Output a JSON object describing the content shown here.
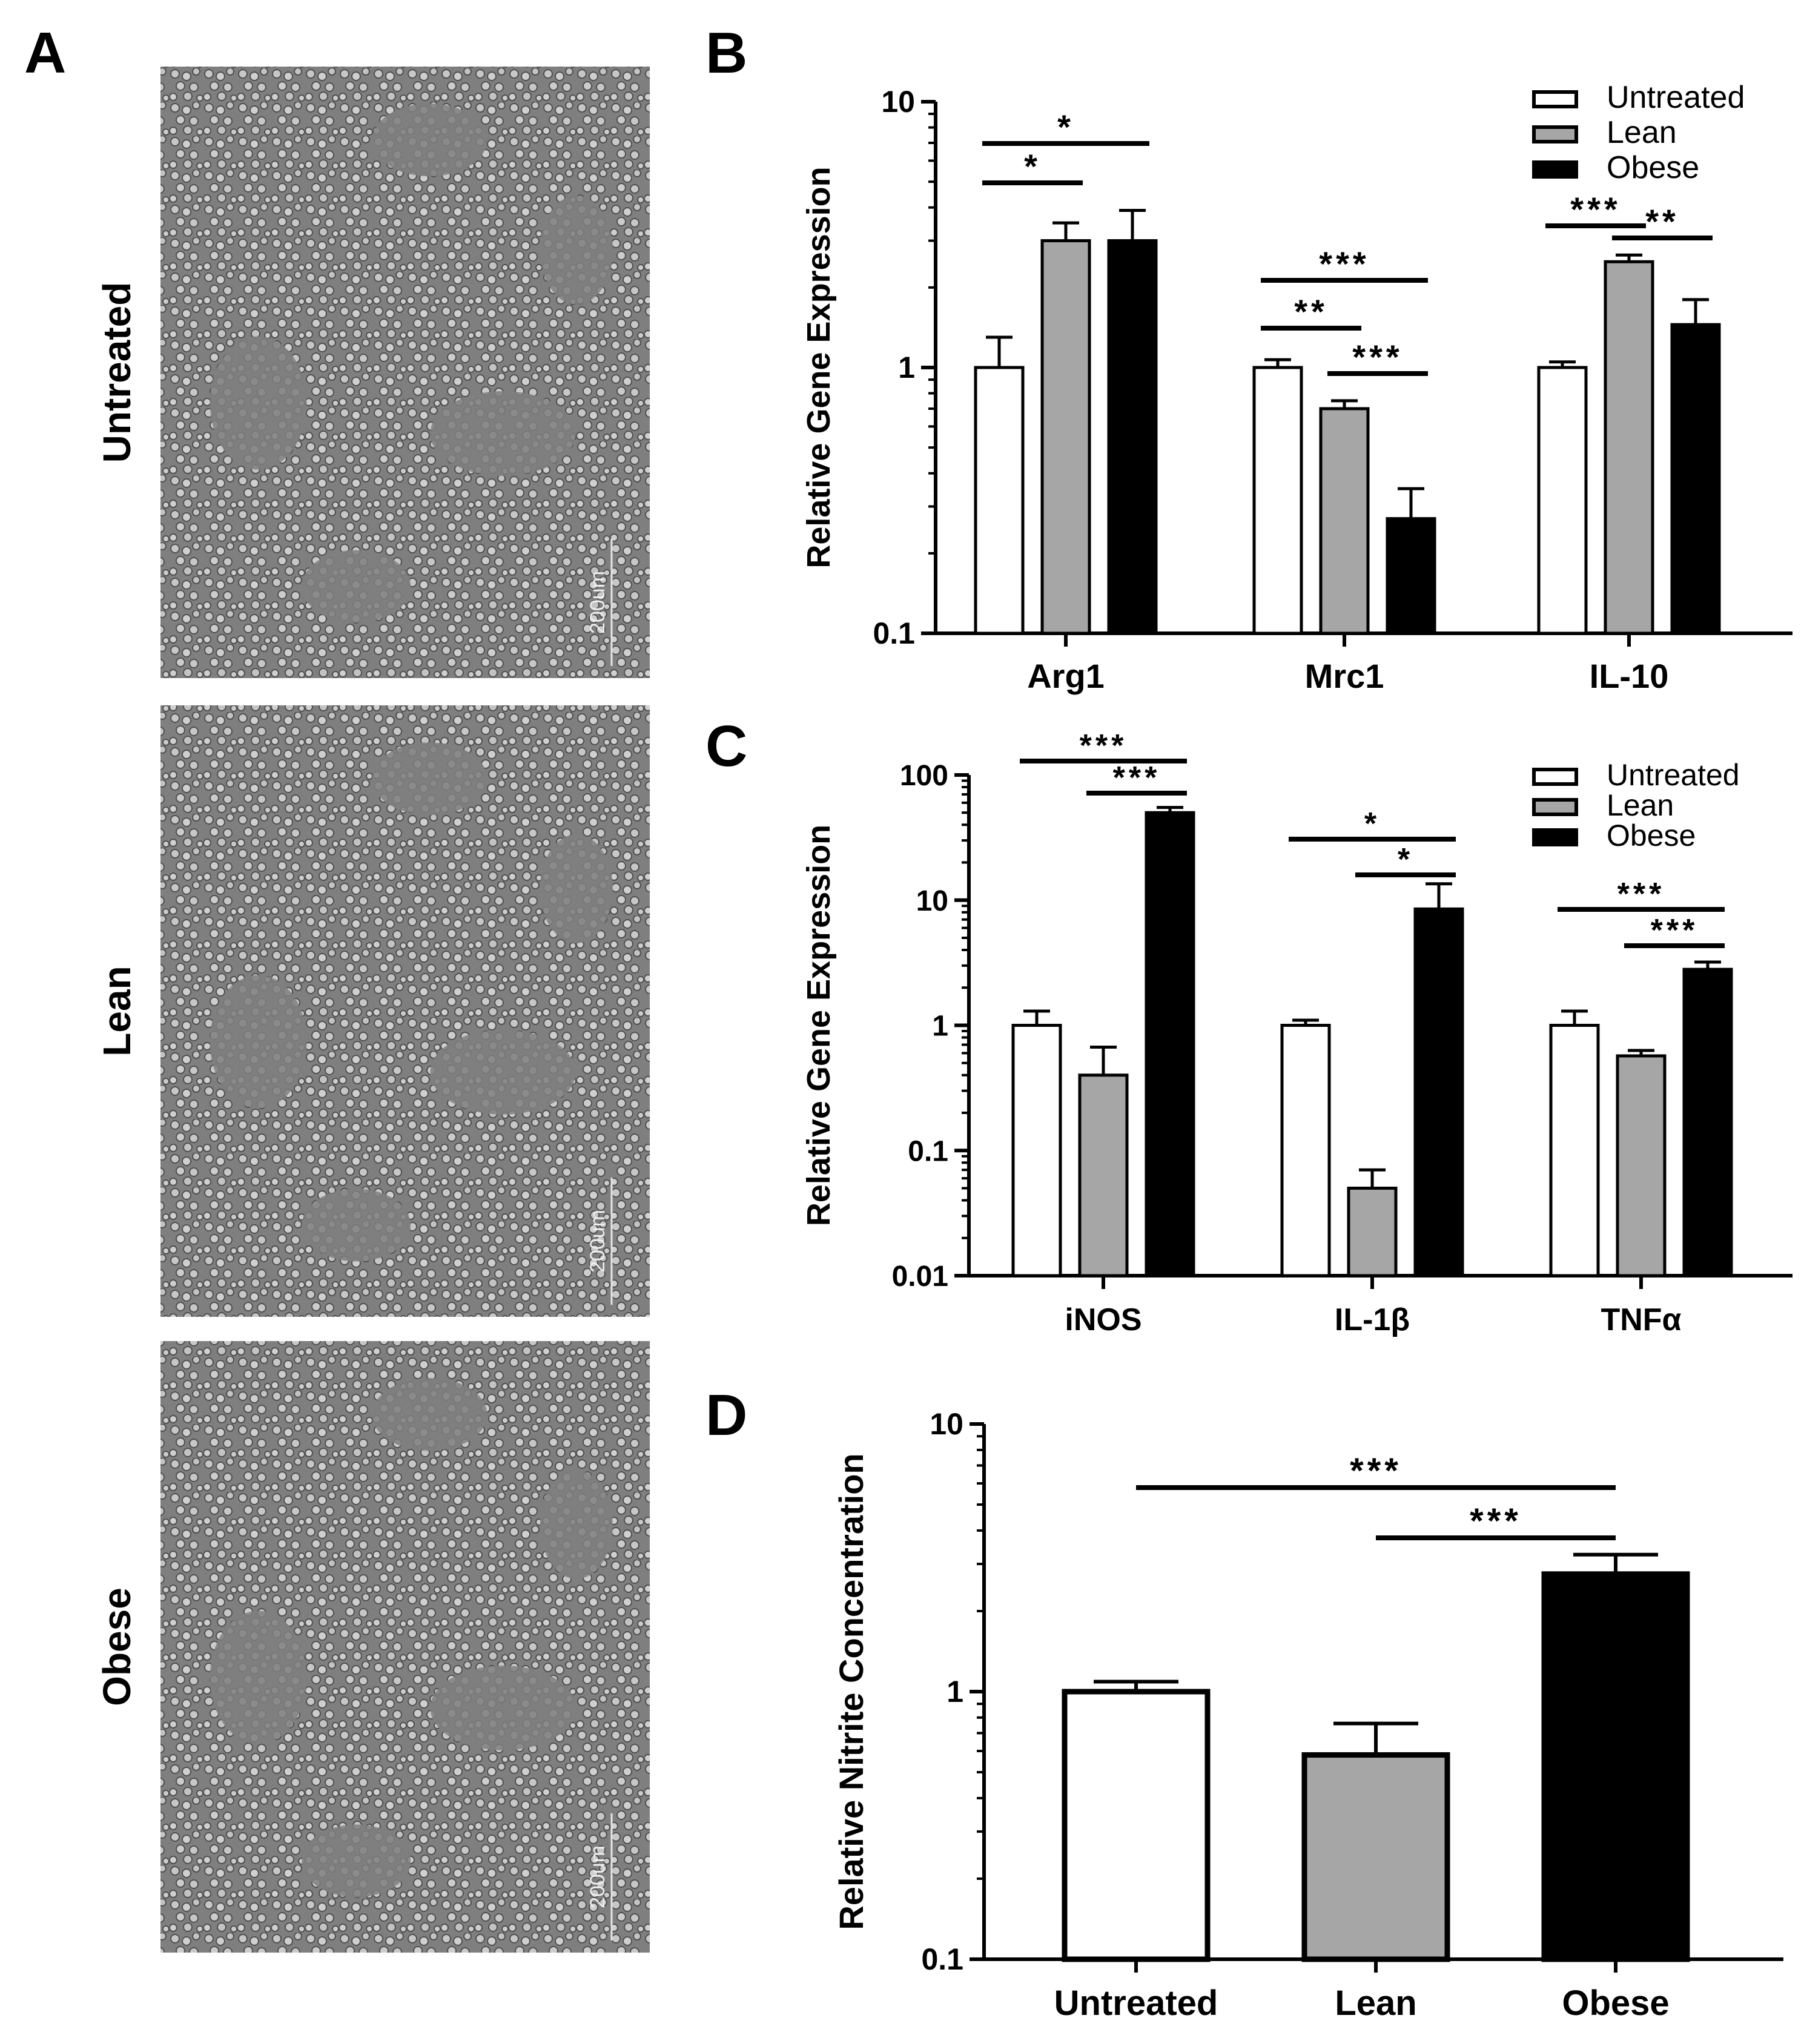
{
  "panel_labels": {
    "a": "A",
    "b": "B",
    "c": "C",
    "d": "D"
  },
  "micrographs": [
    {
      "row_label": "Untreated",
      "scale_bar": "200um"
    },
    {
      "row_label": "Lean",
      "scale_bar": "200um"
    },
    {
      "row_label": "Obese",
      "scale_bar": "200um"
    }
  ],
  "colors": {
    "untreated": "#ffffff",
    "lean": "#a6a6a6",
    "obese": "#000000",
    "bar_border": "#000000",
    "micrograph_background": "#7f7f7f",
    "micrograph_cells": "#d2d2d2"
  },
  "chart_data": [
    {
      "panel": "B",
      "type": "bar",
      "ylabel": "Relative Gene Expression",
      "yscale": "log",
      "ylim": [
        0.1,
        10
      ],
      "yticks": [
        "0.1",
        "1",
        "10"
      ],
      "categories": [
        "Arg1",
        "Mrc1",
        "IL-10"
      ],
      "legend": {
        "placement": "top-right",
        "entries": [
          "Untreated",
          "Lean",
          "Obese"
        ]
      },
      "series": [
        {
          "name": "Untreated",
          "values": [
            1.0,
            1.0,
            1.0
          ],
          "errors": [
            0.3,
            0.07,
            0.05
          ]
        },
        {
          "name": "Lean",
          "values": [
            3.0,
            0.7,
            2.5
          ],
          "errors": [
            0.5,
            0.05,
            0.15
          ]
        },
        {
          "name": "Obese",
          "values": [
            3.0,
            0.27,
            1.45
          ],
          "errors": [
            0.9,
            0.08,
            0.35
          ]
        }
      ],
      "significance": [
        {
          "category": "Arg1",
          "from": "Untreated",
          "to": "Lean",
          "label": "*"
        },
        {
          "category": "Arg1",
          "from": "Untreated",
          "to": "Obese",
          "label": "*"
        },
        {
          "category": "Mrc1",
          "from": "Untreated",
          "to": "Lean",
          "label": "**"
        },
        {
          "category": "Mrc1",
          "from": "Lean",
          "to": "Obese",
          "label": "***"
        },
        {
          "category": "Mrc1",
          "from": "Untreated",
          "to": "Obese",
          "label": "***"
        },
        {
          "category": "IL-10",
          "from": "Untreated",
          "to": "Lean",
          "label": "***"
        },
        {
          "category": "IL-10",
          "from": "Lean",
          "to": "Obese",
          "label": "**"
        }
      ]
    },
    {
      "panel": "C",
      "type": "bar",
      "ylabel": "Relative Gene Expression",
      "yscale": "log",
      "ylim": [
        0.01,
        100
      ],
      "yticks": [
        "0.01",
        "0.1",
        "1",
        "10",
        "100"
      ],
      "categories": [
        "iNOS",
        "IL-1β",
        "TNFα"
      ],
      "legend": {
        "placement": "top-right",
        "entries": [
          "Untreated",
          "Lean",
          "Obese"
        ]
      },
      "series": [
        {
          "name": "Untreated",
          "values": [
            1.0,
            1.0,
            1.0
          ],
          "errors": [
            0.3,
            0.1,
            0.3
          ]
        },
        {
          "name": "Lean",
          "values": [
            0.4,
            0.05,
            0.57
          ],
          "errors": [
            0.27,
            0.02,
            0.06
          ]
        },
        {
          "name": "Obese",
          "values": [
            50,
            8.5,
            2.8
          ],
          "errors": [
            5,
            5,
            0.4
          ]
        }
      ],
      "significance": [
        {
          "category": "iNOS",
          "from": "Untreated",
          "to": "Obese",
          "label": "***"
        },
        {
          "category": "iNOS",
          "from": "Lean",
          "to": "Obese",
          "label": "***"
        },
        {
          "category": "IL-1β",
          "from": "Untreated",
          "to": "Obese",
          "label": "*"
        },
        {
          "category": "IL-1β",
          "from": "Lean",
          "to": "Obese",
          "label": "*"
        },
        {
          "category": "TNFα",
          "from": "Untreated",
          "to": "Obese",
          "label": "***"
        },
        {
          "category": "TNFα",
          "from": "Lean",
          "to": "Obese",
          "label": "***"
        }
      ]
    },
    {
      "panel": "D",
      "type": "bar",
      "ylabel": "Relative Nitrite Concentration",
      "yscale": "log",
      "ylim": [
        0.1,
        10
      ],
      "yticks": [
        "0.1",
        "1",
        "10"
      ],
      "categories": [
        "Untreated",
        "Lean",
        "Obese"
      ],
      "values": [
        1.0,
        0.58,
        2.75
      ],
      "errors": [
        0.09,
        0.18,
        0.5
      ],
      "significance": [
        {
          "from": "Untreated",
          "to": "Obese",
          "label": "***"
        },
        {
          "from": "Lean",
          "to": "Obese",
          "label": "***"
        }
      ]
    }
  ]
}
